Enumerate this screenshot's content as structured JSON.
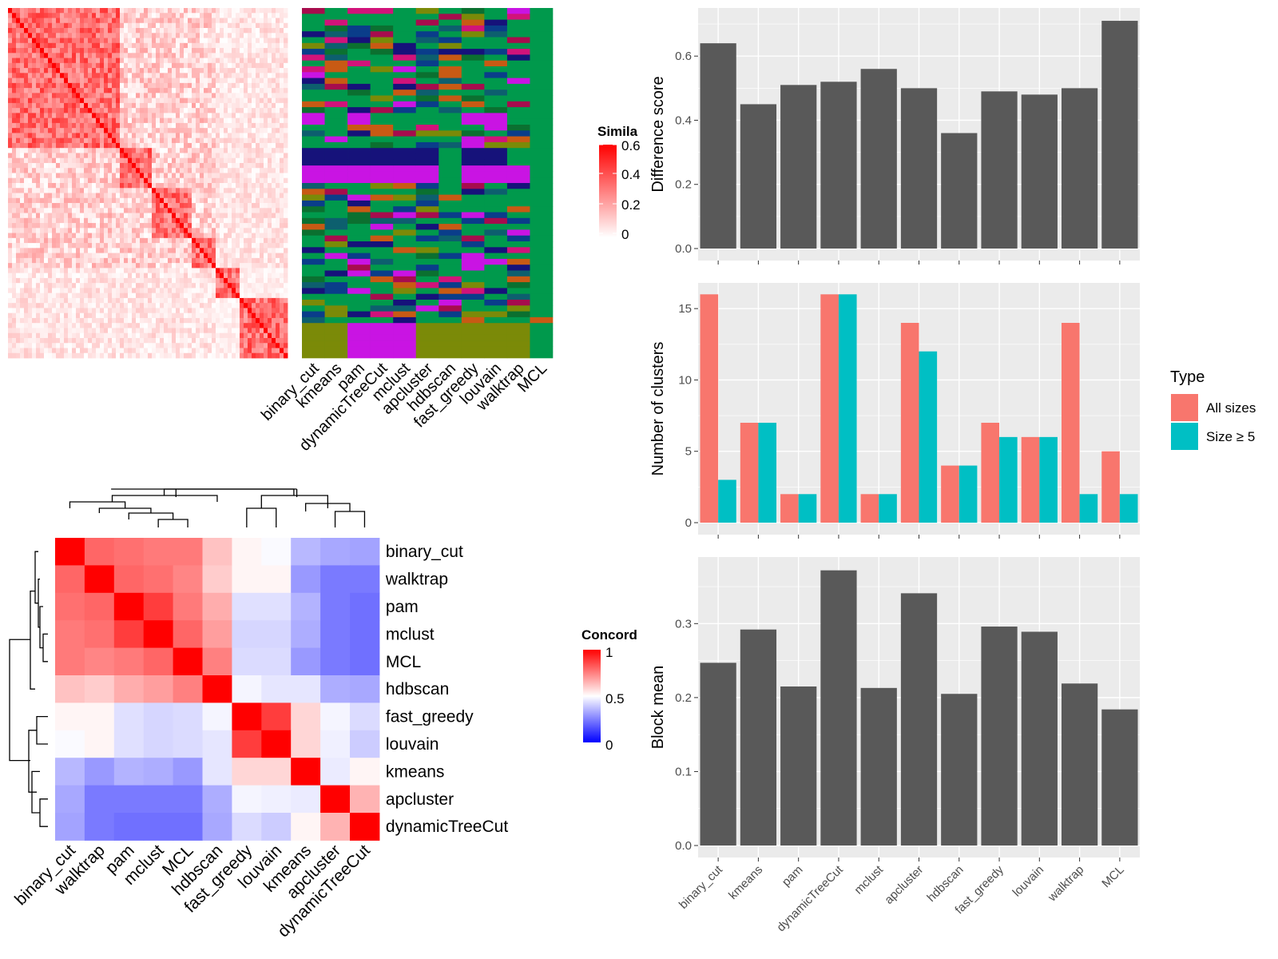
{
  "methods": [
    "binary_cut",
    "kmeans",
    "pam",
    "dynamicTreeCut",
    "mclust",
    "apcluster",
    "hdbscan",
    "fast_greedy",
    "louvain",
    "walktrap",
    "MCL"
  ],
  "similarity_legend": {
    "title": "Simila",
    "ticks": [
      "0.6",
      "0.4",
      "0.2",
      "0"
    ],
    "colors": [
      "#ffffff",
      "#ff0000"
    ]
  },
  "concordance_legend": {
    "title": "Concord",
    "ticks": [
      "1",
      "0.5",
      "0"
    ],
    "colors": [
      "#0000ff",
      "#ffffff",
      "#ff0000"
    ]
  },
  "colors": {
    "bar": "#595959",
    "all_sizes": "#f8766d",
    "size_ge5": "#00bfc4",
    "panel_bg": "#ebebeb",
    "grid": "#ffffff"
  },
  "cluster_colors": [
    "#00994c",
    "#0d5f6e",
    "#16127a",
    "#c914e3",
    "#7b8a08",
    "#d1137a",
    "#c85a14",
    "#0b7030",
    "#0a3d8a",
    "#a70c4d"
  ],
  "concordance": {
    "order": [
      "binary_cut",
      "walktrap",
      "pam",
      "mclust",
      "MCL",
      "hdbscan",
      "fast_greedy",
      "louvain",
      "kmeans",
      "apcluster",
      "dynamicTreeCut"
    ],
    "matrix": [
      [
        1.0,
        0.8,
        0.78,
        0.76,
        0.76,
        0.62,
        0.52,
        0.49,
        0.36,
        0.33,
        0.32
      ],
      [
        0.8,
        1.0,
        0.8,
        0.78,
        0.74,
        0.6,
        0.52,
        0.52,
        0.3,
        0.24,
        0.24
      ],
      [
        0.78,
        0.8,
        1.0,
        0.88,
        0.76,
        0.66,
        0.44,
        0.44,
        0.35,
        0.24,
        0.22
      ],
      [
        0.76,
        0.78,
        0.88,
        1.0,
        0.8,
        0.69,
        0.42,
        0.42,
        0.34,
        0.24,
        0.22
      ],
      [
        0.76,
        0.74,
        0.76,
        0.8,
        1.0,
        0.75,
        0.43,
        0.43,
        0.3,
        0.24,
        0.22
      ],
      [
        0.62,
        0.6,
        0.66,
        0.69,
        0.75,
        1.0,
        0.48,
        0.45,
        0.45,
        0.34,
        0.33
      ],
      [
        0.52,
        0.52,
        0.44,
        0.42,
        0.43,
        0.48,
        1.0,
        0.88,
        0.58,
        0.48,
        0.43
      ],
      [
        0.49,
        0.52,
        0.44,
        0.42,
        0.43,
        0.45,
        0.88,
        1.0,
        0.58,
        0.47,
        0.4
      ],
      [
        0.36,
        0.3,
        0.35,
        0.34,
        0.3,
        0.45,
        0.58,
        0.58,
        1.0,
        0.46,
        0.52
      ],
      [
        0.33,
        0.24,
        0.24,
        0.24,
        0.24,
        0.34,
        0.48,
        0.47,
        0.46,
        1.0,
        0.65
      ],
      [
        0.32,
        0.24,
        0.22,
        0.22,
        0.22,
        0.33,
        0.43,
        0.4,
        0.52,
        0.65,
        1.0
      ]
    ]
  },
  "chart_data": [
    {
      "type": "bar",
      "categories": [
        "binary_cut",
        "kmeans",
        "pam",
        "dynamicTreeCut",
        "mclust",
        "apcluster",
        "hdbscan",
        "fast_greedy",
        "louvain",
        "walktrap",
        "MCL"
      ],
      "values": [
        0.64,
        0.45,
        0.51,
        0.52,
        0.56,
        0.5,
        0.36,
        0.49,
        0.48,
        0.5,
        0.71
      ],
      "xlabel": "",
      "ylabel": "Difference score",
      "ylim": [
        0,
        0.75
      ],
      "yticks": [
        "0.0",
        "0.2",
        "0.4",
        "0.6"
      ],
      "grid": true
    },
    {
      "type": "bar",
      "categories": [
        "binary_cut",
        "kmeans",
        "pam",
        "dynamicTreeCut",
        "mclust",
        "apcluster",
        "hdbscan",
        "fast_greedy",
        "louvain",
        "walktrap",
        "MCL"
      ],
      "series": [
        {
          "name": "All sizes",
          "values": [
            16,
            7,
            2,
            16,
            2,
            14,
            4,
            7,
            6,
            14,
            5
          ]
        },
        {
          "name": "Size ≥ 5",
          "values": [
            3,
            7,
            2,
            16,
            2,
            12,
            4,
            6,
            6,
            2,
            2
          ]
        }
      ],
      "xlabel": "",
      "ylabel": "Number of clusters",
      "ylim": [
        0,
        16.8
      ],
      "yticks": [
        "0",
        "5",
        "10",
        "15"
      ],
      "grid": true,
      "legend": {
        "title": "Type",
        "position": "right"
      }
    },
    {
      "type": "bar",
      "categories": [
        "binary_cut",
        "kmeans",
        "pam",
        "dynamicTreeCut",
        "mclust",
        "apcluster",
        "hdbscan",
        "fast_greedy",
        "louvain",
        "walktrap",
        "MCL"
      ],
      "values": [
        0.247,
        0.292,
        0.215,
        0.372,
        0.213,
        0.341,
        0.205,
        0.296,
        0.289,
        0.219,
        0.184
      ],
      "xlabel": "",
      "ylabel": "Block mean",
      "ylim": [
        0,
        0.39
      ],
      "yticks": [
        "0.0",
        "0.1",
        "0.2",
        "0.3"
      ],
      "grid": true
    }
  ]
}
